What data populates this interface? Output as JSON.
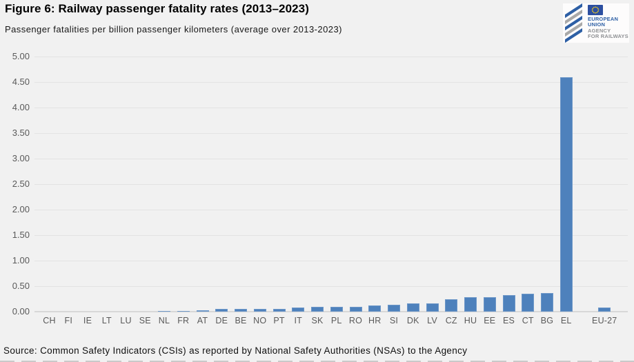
{
  "header": {
    "title": "Figure 6: Railway passenger fatality rates (2013–2023)",
    "subtitle": "Passenger fatalities per billion passenger kilometers (average over 2013-2023)"
  },
  "logo": {
    "lines": [
      "EUROPEAN",
      "UNION",
      "AGENCY",
      "FOR RAILWAYS"
    ],
    "blue": "#2d5fa5",
    "gray": "#8f9194",
    "flag_blue": "#2c4fa0",
    "star_yellow": "#ffd617"
  },
  "chart_data": {
    "type": "bar",
    "title": "Figure 6: Railway passenger fatality rates (2013–2023)",
    "subtitle": "Passenger fatalities per billion passenger kilometers (average over 2013-2023)",
    "categories": [
      "CH",
      "FI",
      "IE",
      "LT",
      "LU",
      "SE",
      "NL",
      "FR",
      "AT",
      "DE",
      "BE",
      "NO",
      "PT",
      "IT",
      "SK",
      "PL",
      "RO",
      "HR",
      "SI",
      "DK",
      "LV",
      "CZ",
      "HU",
      "EE",
      "ES",
      "CT",
      "BG",
      "EL",
      "EU-27"
    ],
    "values": [
      0.0,
      0.0,
      0.0,
      0.0,
      0.0,
      0.0,
      0.02,
      0.02,
      0.03,
      0.05,
      0.05,
      0.06,
      0.06,
      0.08,
      0.09,
      0.1,
      0.1,
      0.12,
      0.14,
      0.16,
      0.16,
      0.24,
      0.28,
      0.28,
      0.32,
      0.35,
      0.36,
      4.6,
      0.08
    ],
    "xlabel": "",
    "ylabel": "",
    "ylim": [
      0,
      5
    ],
    "ytick_step": 0.5,
    "ytick_format_decimals": 2,
    "grid": "horizontal",
    "legend": "none",
    "bar_color": "#4e81bc",
    "separator_before_index": 28
  },
  "footer": {
    "source": "Source: Common Safety Indicators (CSIs) as reported by National Safety Authorities (NSAs) to the Agency"
  }
}
